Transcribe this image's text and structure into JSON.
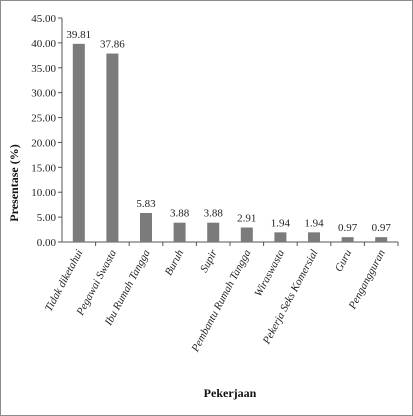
{
  "chart_data": {
    "type": "bar",
    "title": "",
    "xlabel": "Pekerjaan",
    "ylabel": "Presentase (%)",
    "ylim": [
      0,
      45
    ],
    "yticks": [
      "0.00",
      "5.00",
      "10.00",
      "15.00",
      "20.00",
      "25.00",
      "30.00",
      "35.00",
      "40.00",
      "45.00"
    ],
    "categories": [
      "Tidak diketahui",
      "Pegawai Swasta",
      "Ibu Rumah Tangga",
      "Buruh",
      "Supir",
      "Pembantu Rumah Tangga",
      "Wiraswasta",
      "Pekerja Seks Komersial",
      "Guru",
      "Pengangguran"
    ],
    "values": [
      39.81,
      37.86,
      5.83,
      3.88,
      3.88,
      2.91,
      1.94,
      1.94,
      0.97,
      0.97
    ],
    "value_labels": [
      "39.81",
      "37.86",
      "5.83",
      "3.88",
      "3.88",
      "2.91",
      "1.94",
      "1.94",
      "0.97",
      "0.97"
    ],
    "grid": false,
    "bar_color": "#7b7b7b"
  }
}
